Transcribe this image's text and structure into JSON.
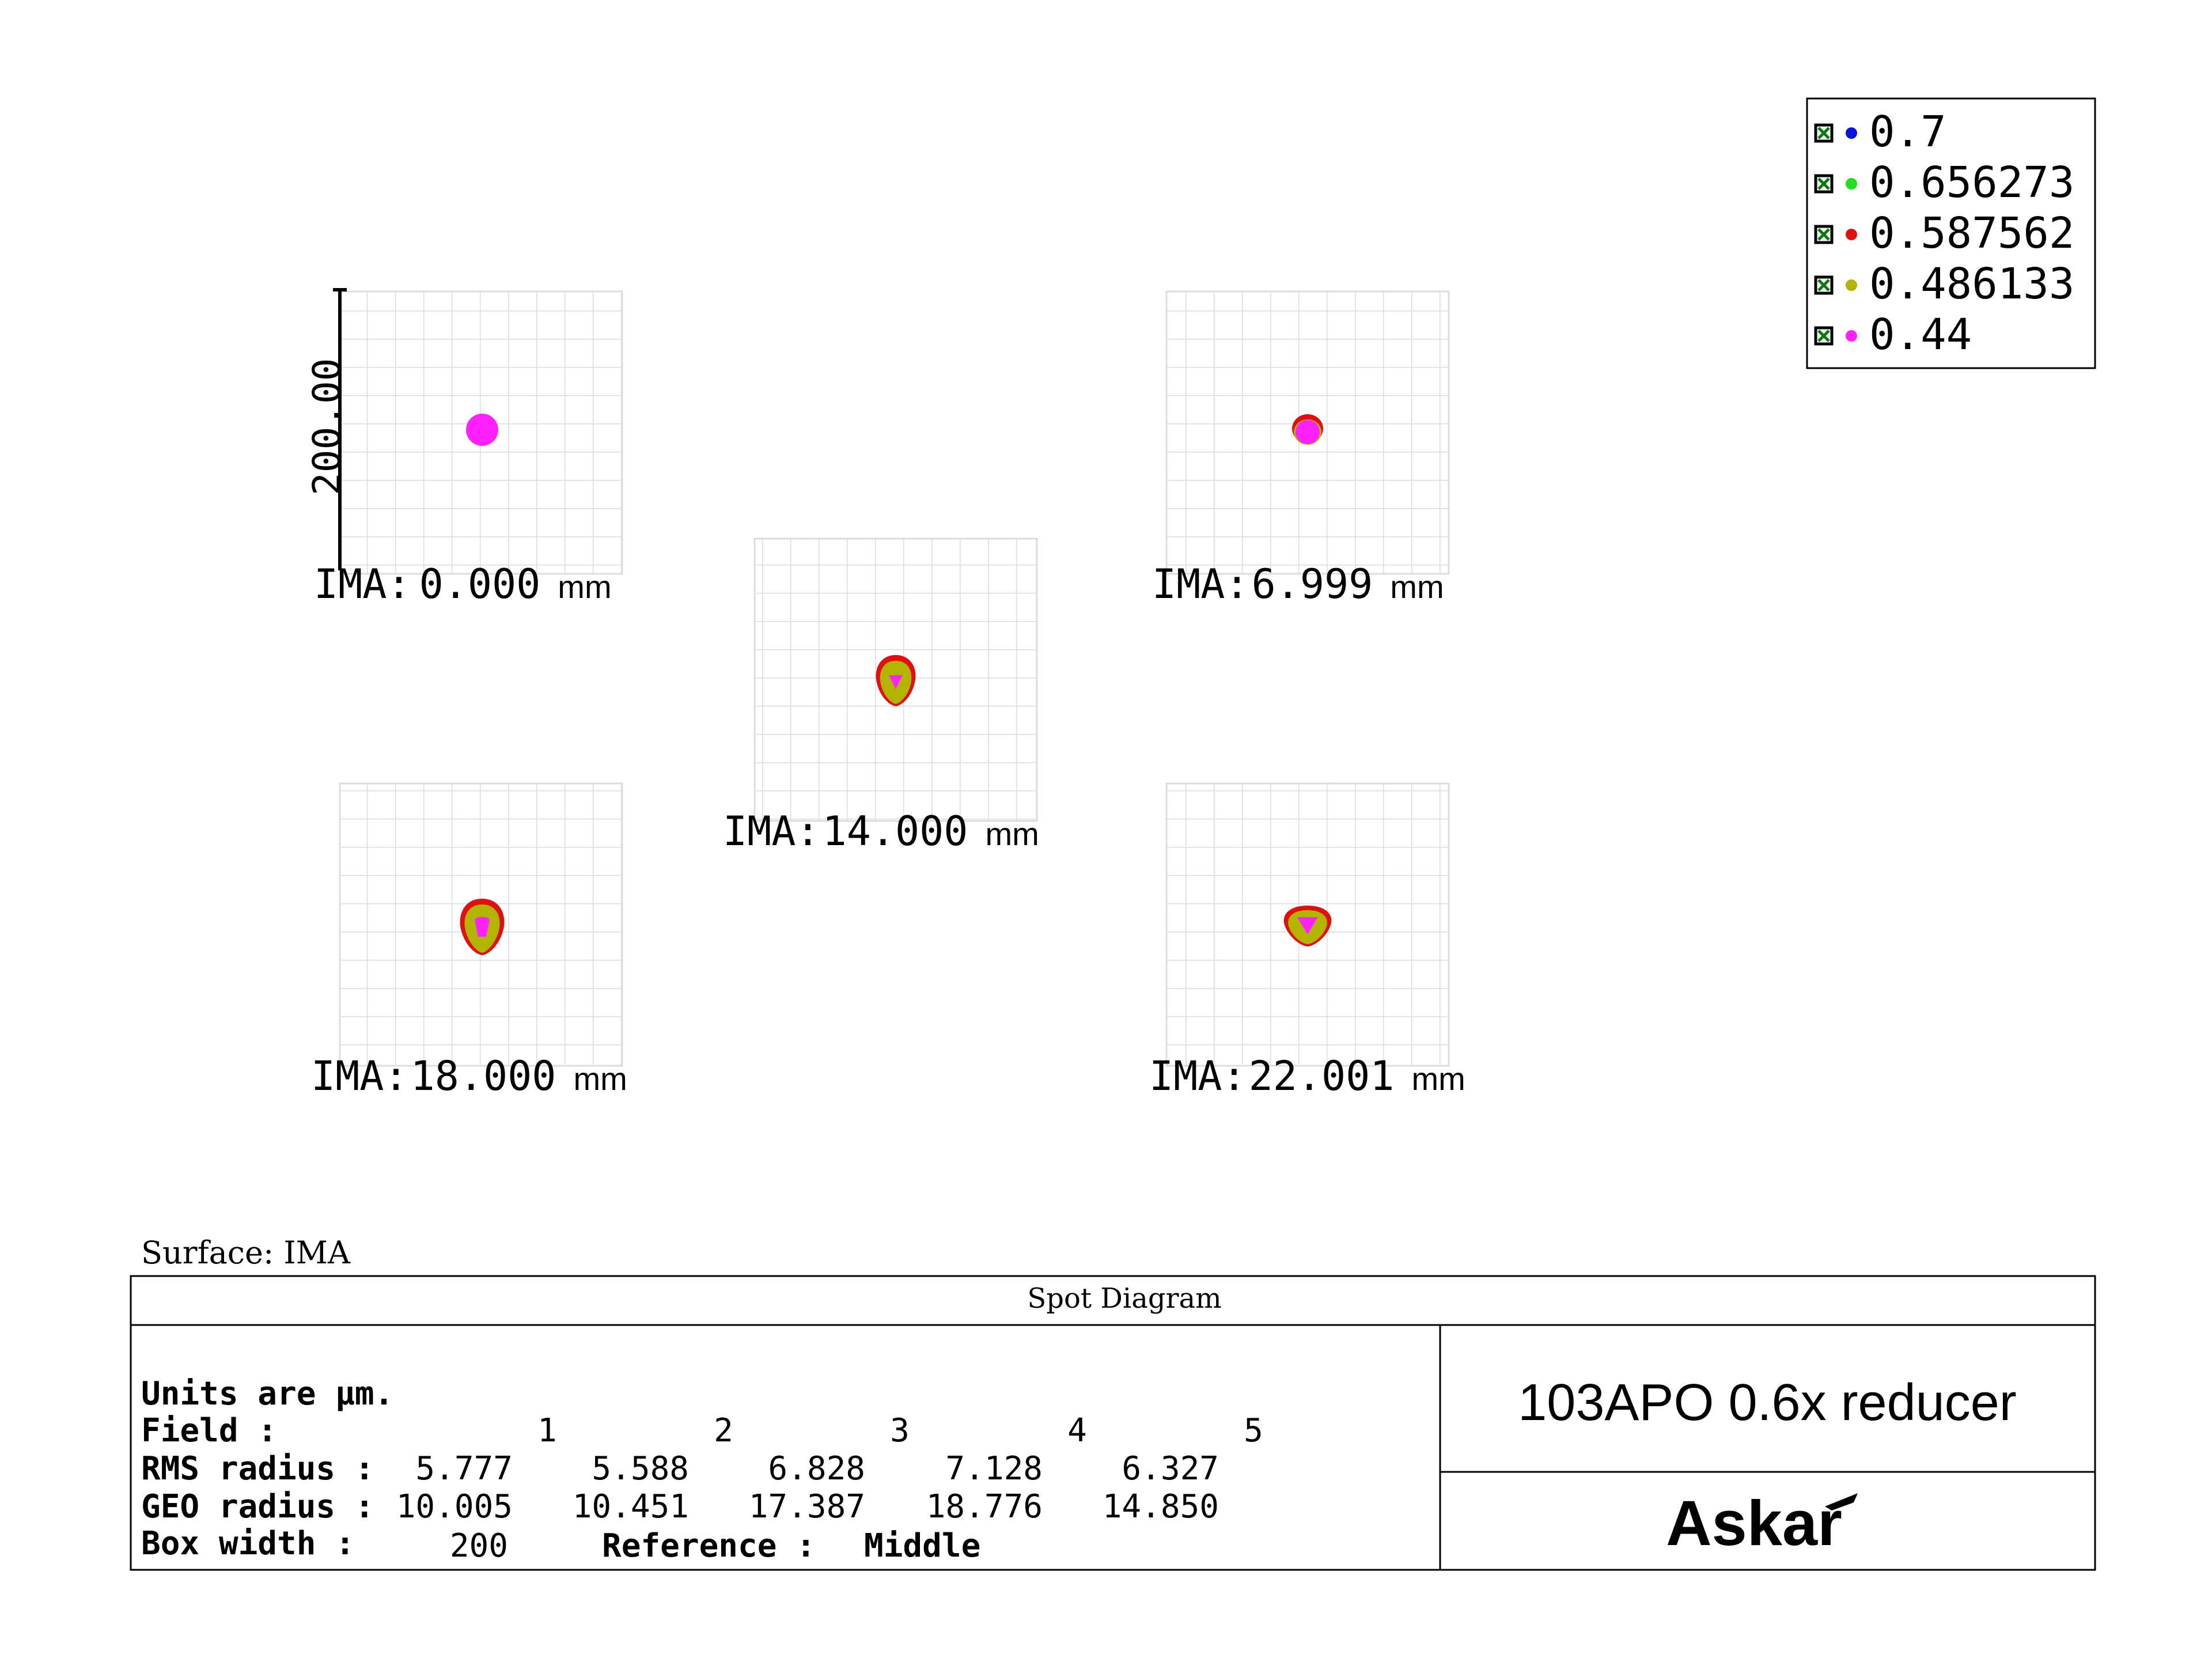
{
  "legend": {
    "items": [
      {
        "label": "0.7",
        "color": "#0a14d8"
      },
      {
        "label": "0.656273",
        "color": "#22dd22"
      },
      {
        "label": "0.587562",
        "color": "#e01010"
      },
      {
        "label": "0.486133",
        "color": "#b2b400"
      },
      {
        "label": "0.44",
        "color": "#ff22ff"
      }
    ],
    "checkbox_icon": "checked-box-icon"
  },
  "scale_label": "200.00",
  "fields": [
    {
      "ima_prefix": "IMA:",
      "ima_value": "0.000",
      "unit": "mm",
      "spot": "round"
    },
    {
      "ima_prefix": "IMA:",
      "ima_value": "6.999",
      "unit": "mm",
      "spot": "small-comet"
    },
    {
      "ima_prefix": "IMA:",
      "ima_value": "14.000",
      "unit": "mm",
      "spot": "comet"
    },
    {
      "ima_prefix": "IMA:",
      "ima_value": "18.000",
      "unit": "mm",
      "spot": "comet-large"
    },
    {
      "ima_prefix": "IMA:",
      "ima_value": "22.001",
      "unit": "mm",
      "spot": "comet-wide"
    }
  ],
  "surface_label": "Surface: IMA",
  "panel": {
    "title": "Spot Diagram",
    "units_line": "Units are µm.",
    "field_label": "Field      :",
    "field_numbers": [
      "1",
      "2",
      "3",
      "4",
      "5"
    ],
    "rms_label": "RMS radius :",
    "rms_values": [
      "5.777",
      "5.588",
      "6.828",
      "7.128",
      "6.327"
    ],
    "geo_label": "GEO radius :",
    "geo_values": [
      "10.005",
      "10.451",
      "17.387",
      "18.776",
      "14.850"
    ],
    "box_label": "Box width  :",
    "box_value": "200",
    "reference_label": "Reference  :",
    "reference_value": "Middle",
    "product_title": "103APO 0.6x reducer",
    "brand": "Askar"
  }
}
